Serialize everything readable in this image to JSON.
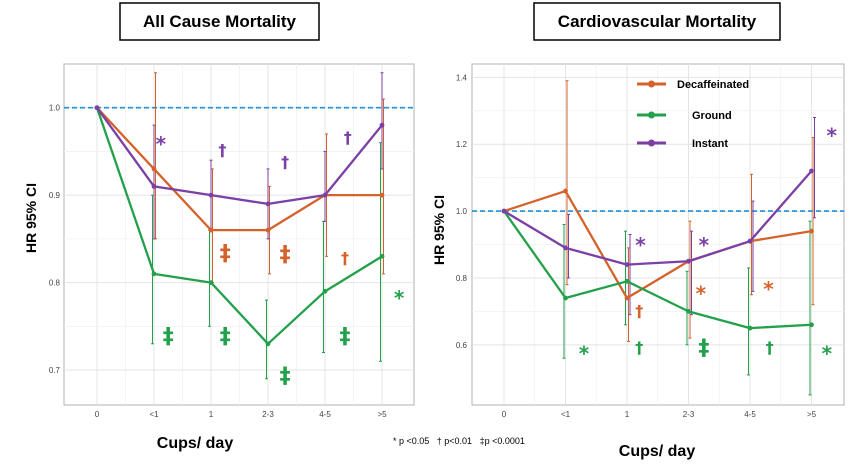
{
  "footnote": "* p <0.05   † p<0.01   ‡p <0.0001",
  "colors": {
    "decaf": "#d4622a",
    "ground": "#22a04a",
    "instant": "#7b3fa6",
    "ref": "#1f8fd6"
  },
  "chart_data": [
    {
      "type": "line",
      "title": "All Cause Mortality",
      "xlabel": "Cups/ day",
      "ylabel": "HR 95% CI",
      "categories": [
        "0",
        "<1",
        "1",
        "2-3",
        "4-5",
        ">5"
      ],
      "ylim": [
        0.66,
        1.05
      ],
      "yticks": [
        0.7,
        0.8,
        0.9,
        1.0
      ],
      "ytick_labels": [
        "0.7",
        "0.8",
        "0.9",
        "1.0"
      ],
      "reference_line": 1.0,
      "grid": true,
      "series": [
        {
          "key": "decaf",
          "values": [
            1.0,
            0.93,
            0.86,
            0.86,
            0.9,
            0.9
          ],
          "ci_low": [
            1.0,
            0.85,
            0.8,
            0.81,
            0.83,
            0.81
          ],
          "ci_high": [
            1.0,
            1.04,
            0.93,
            0.91,
            0.97,
            1.01
          ]
        },
        {
          "key": "ground",
          "values": [
            1.0,
            0.81,
            0.8,
            0.73,
            0.79,
            0.83
          ],
          "ci_low": [
            1.0,
            0.73,
            0.75,
            0.69,
            0.72,
            0.71
          ],
          "ci_high": [
            1.0,
            0.9,
            0.86,
            0.78,
            0.87,
            0.96
          ]
        },
        {
          "key": "instant",
          "values": [
            1.0,
            0.91,
            0.9,
            0.89,
            0.9,
            0.98
          ],
          "ci_low": [
            1.0,
            0.85,
            0.86,
            0.85,
            0.87,
            0.93
          ],
          "ci_high": [
            1.0,
            0.98,
            0.94,
            0.93,
            0.95,
            1.04
          ]
        }
      ],
      "annotations": [
        {
          "text": "*",
          "color": "instant",
          "x": 1.12,
          "y": 0.963
        },
        {
          "text": "†",
          "color": "instant",
          "x": 2.2,
          "y": 0.952
        },
        {
          "text": "†",
          "color": "instant",
          "x": 3.3,
          "y": 0.938
        },
        {
          "text": "†",
          "color": "instant",
          "x": 4.4,
          "y": 0.966
        },
        {
          "text": "‡",
          "color": "decaf",
          "x": 2.25,
          "y": 0.834
        },
        {
          "text": "‡",
          "color": "decaf",
          "x": 3.3,
          "y": 0.833
        },
        {
          "text": "†",
          "color": "decaf",
          "x": 4.35,
          "y": 0.828
        },
        {
          "text": "*",
          "color": "ground",
          "x": 5.3,
          "y": 0.787
        },
        {
          "text": "‡",
          "color": "ground",
          "x": 1.25,
          "y": 0.739
        },
        {
          "text": "‡",
          "color": "ground",
          "x": 2.25,
          "y": 0.739
        },
        {
          "text": "‡",
          "color": "ground",
          "x": 4.35,
          "y": 0.739
        },
        {
          "text": "‡",
          "color": "ground",
          "x": 3.3,
          "y": 0.694
        }
      ]
    },
    {
      "type": "line",
      "title": "Cardiovascular Mortality",
      "xlabel": "Cups/ day",
      "ylabel": "HR 95% CI",
      "categories": [
        "0",
        "<1",
        "1",
        "2-3",
        "4-5",
        ">5"
      ],
      "ylim": [
        0.42,
        1.44
      ],
      "yticks": [
        0.6,
        0.8,
        1.0,
        1.2,
        1.4
      ],
      "ytick_labels": [
        "0.6",
        "0.8",
        "1.0",
        "1.2",
        "1.4"
      ],
      "reference_line": 1.0,
      "grid": true,
      "legend": {
        "position": "top-right",
        "entries": [
          {
            "key": "decaf",
            "label": "Decaffeinated"
          },
          {
            "key": "ground",
            "label": "Ground"
          },
          {
            "key": "instant",
            "label": "Instant"
          }
        ]
      },
      "series": [
        {
          "key": "decaf",
          "values": [
            1.0,
            1.06,
            0.74,
            0.85,
            0.91,
            0.94
          ],
          "ci_low": [
            1.0,
            0.78,
            0.61,
            0.62,
            0.75,
            0.72
          ],
          "ci_high": [
            1.0,
            1.39,
            0.89,
            0.97,
            1.11,
            1.22
          ]
        },
        {
          "key": "ground",
          "values": [
            1.0,
            0.74,
            0.79,
            0.7,
            0.65,
            0.66
          ],
          "ci_low": [
            1.0,
            0.56,
            0.66,
            0.6,
            0.51,
            0.45
          ],
          "ci_high": [
            1.0,
            0.96,
            0.94,
            0.82,
            0.83,
            0.97
          ]
        },
        {
          "key": "instant",
          "values": [
            1.0,
            0.89,
            0.84,
            0.85,
            0.91,
            1.12
          ],
          "ci_low": [
            1.0,
            0.8,
            0.69,
            0.69,
            0.76,
            0.98
          ],
          "ci_high": [
            1.0,
            0.99,
            0.93,
            0.94,
            1.03,
            1.28
          ]
        }
      ],
      "annotations": [
        {
          "text": "*",
          "color": "instant",
          "x": 5.33,
          "y": 1.238
        },
        {
          "text": "*",
          "color": "instant",
          "x": 2.22,
          "y": 0.91
        },
        {
          "text": "*",
          "color": "instant",
          "x": 3.25,
          "y": 0.91
        },
        {
          "text": "*",
          "color": "decaf",
          "x": 3.2,
          "y": 0.765
        },
        {
          "text": "*",
          "color": "decaf",
          "x": 4.3,
          "y": 0.779
        },
        {
          "text": "†",
          "color": "decaf",
          "x": 2.2,
          "y": 0.701
        },
        {
          "text": "*",
          "color": "ground",
          "x": 1.3,
          "y": 0.586
        },
        {
          "text": "†",
          "color": "ground",
          "x": 2.2,
          "y": 0.593
        },
        {
          "text": "‡",
          "color": "ground",
          "x": 3.25,
          "y": 0.593
        },
        {
          "text": "†",
          "color": "ground",
          "x": 4.32,
          "y": 0.593
        },
        {
          "text": "*",
          "color": "ground",
          "x": 5.25,
          "y": 0.586
        }
      ]
    }
  ]
}
